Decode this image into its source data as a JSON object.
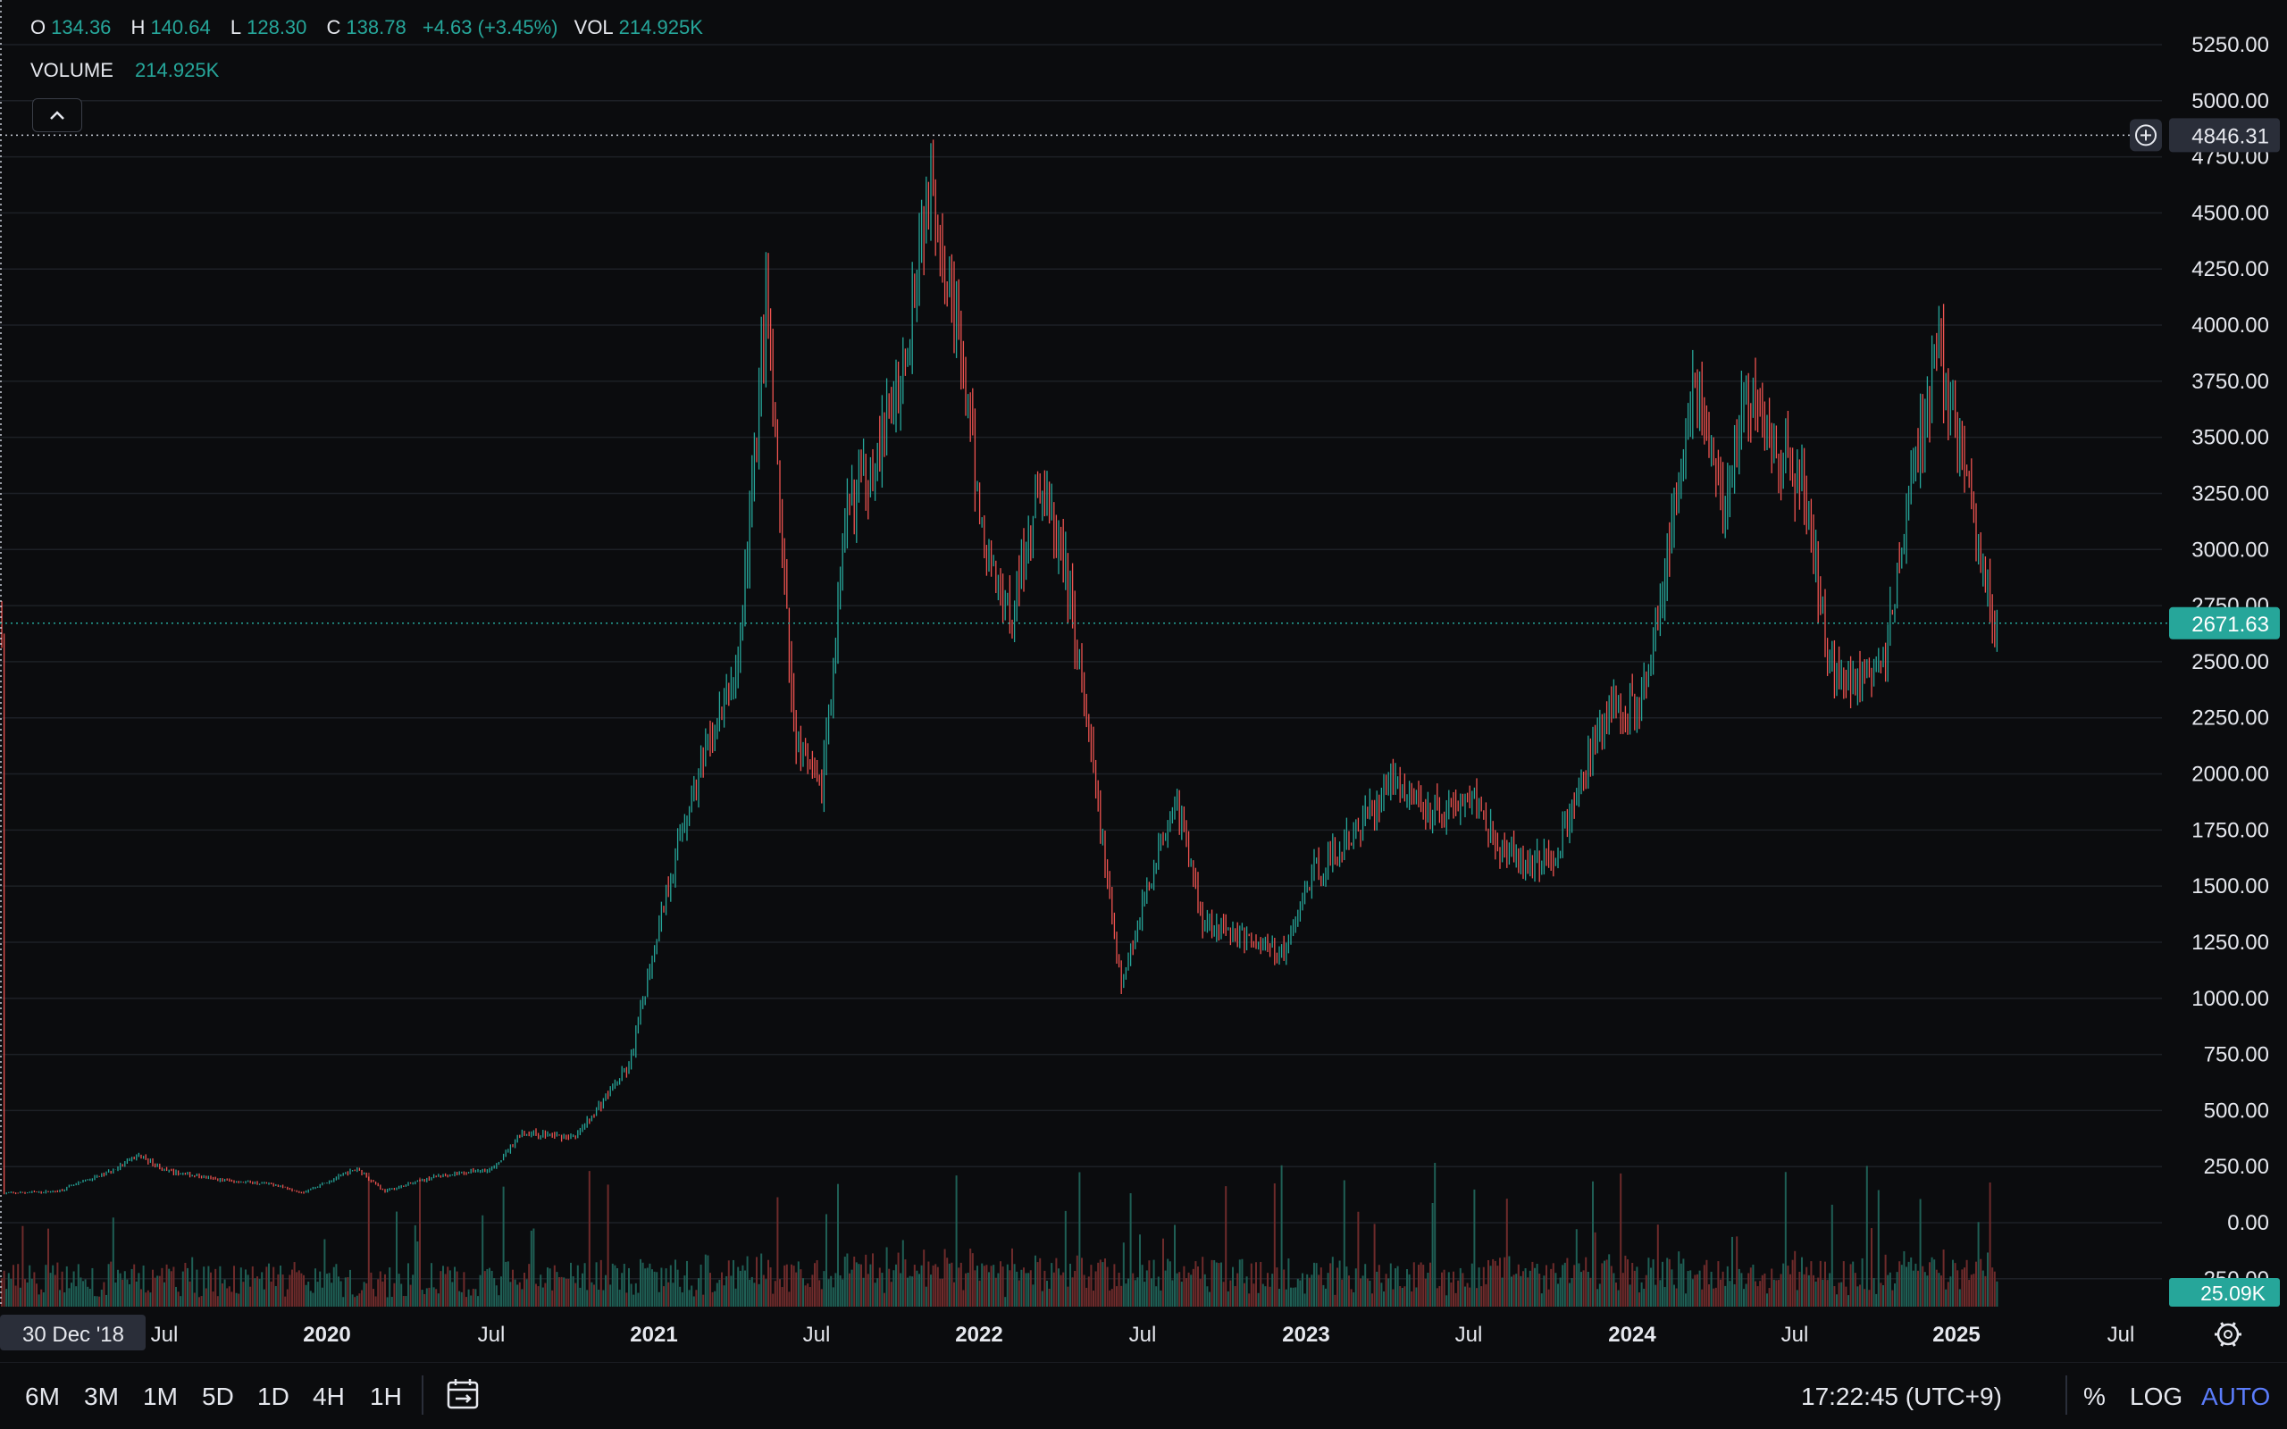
{
  "legend": {
    "open_label": "O",
    "open": "134.36",
    "high_label": "H",
    "high": "140.64",
    "low_label": "L",
    "low": "128.30",
    "close_label": "C",
    "close": "138.78",
    "change": "+4.63 (+3.45%)",
    "vol_label": "VOL",
    "vol": "214.925K",
    "volume_label": "VOLUME",
    "volume": "214.925K"
  },
  "price_axis": {
    "ticks": [
      "5250.00",
      "5000.00",
      "4750.00",
      "4500.00",
      "4250.00",
      "4000.00",
      "3750.00",
      "3500.00",
      "3250.00",
      "3000.00",
      "2750.00",
      "2500.00",
      "2250.00",
      "2000.00",
      "1750.00",
      "1500.00",
      "1250.00",
      "1000.00",
      "750.00",
      "500.00",
      "250.00",
      "0.00",
      "-250.00"
    ],
    "crosshair_price": "4846.31",
    "last_price": "2671.63",
    "volume_badge": "25.09K"
  },
  "time_axis": {
    "crosshair_date": "30 Dec '18",
    "labels": [
      {
        "text": "Jul",
        "bold": false
      },
      {
        "text": "2020",
        "bold": true
      },
      {
        "text": "Jul",
        "bold": false
      },
      {
        "text": "2021",
        "bold": true
      },
      {
        "text": "Jul",
        "bold": false
      },
      {
        "text": "2022",
        "bold": true
      },
      {
        "text": "Jul",
        "bold": false
      },
      {
        "text": "2023",
        "bold": true
      },
      {
        "text": "Jul",
        "bold": false
      },
      {
        "text": "2024",
        "bold": true
      },
      {
        "text": "Jul",
        "bold": false
      },
      {
        "text": "2025",
        "bold": true
      },
      {
        "text": "Jul",
        "bold": false
      }
    ]
  },
  "toolbar": {
    "timeframes": [
      "6M",
      "3M",
      "1M",
      "5D",
      "1D",
      "4H",
      "1H"
    ],
    "clock": "17:22:45 (UTC+9)",
    "percent": "%",
    "log": "LOG",
    "auto": "AUTO"
  },
  "colors": {
    "up": "#26a69a",
    "down": "#ef5350",
    "up_dim": "#1f5f55",
    "down_dim": "#6e2b2b",
    "grid": "#1d2026",
    "last_price_bg": "#26a69a",
    "crosshair_bg": "#2a2e39"
  },
  "chart_data": {
    "type": "candlestick",
    "x_range": [
      "2018-12-30",
      "2025-07"
    ],
    "ylim": [
      -250,
      5250
    ],
    "series": [
      {
        "name": "",
        "points": [
          [
            "2019-01",
            130
          ],
          [
            "2019-03",
            140
          ],
          [
            "2019-05",
            230
          ],
          [
            "2019-06",
            300
          ],
          [
            "2019-07",
            230
          ],
          [
            "2019-09",
            190
          ],
          [
            "2019-11",
            170
          ],
          [
            "2019-12",
            135
          ],
          [
            "2020-02",
            240
          ],
          [
            "2020-03",
            140
          ],
          [
            "2020-05",
            210
          ],
          [
            "2020-07",
            240
          ],
          [
            "2020-08",
            400
          ],
          [
            "2020-10",
            380
          ],
          [
            "2020-12",
            700
          ],
          [
            "2021-01",
            1300
          ],
          [
            "2021-02",
            1800
          ],
          [
            "2021-04",
            2500
          ],
          [
            "2021-05",
            4100
          ],
          [
            "2021-06",
            2200
          ],
          [
            "2021-07",
            1900
          ],
          [
            "2021-08",
            3200
          ],
          [
            "2021-09",
            3400
          ],
          [
            "2021-10",
            3800
          ],
          [
            "2021-11",
            4700
          ],
          [
            "2021-12",
            4000
          ],
          [
            "2022-01",
            3000
          ],
          [
            "2022-02",
            2700
          ],
          [
            "2022-03",
            3300
          ],
          [
            "2022-04",
            2900
          ],
          [
            "2022-05",
            2000
          ],
          [
            "2022-06",
            1050
          ],
          [
            "2022-07",
            1500
          ],
          [
            "2022-08",
            1900
          ],
          [
            "2022-09",
            1350
          ],
          [
            "2022-10",
            1300
          ],
          [
            "2022-11",
            1250
          ],
          [
            "2022-12",
            1200
          ],
          [
            "2023-01",
            1550
          ],
          [
            "2023-02",
            1650
          ],
          [
            "2023-03",
            1800
          ],
          [
            "2023-04",
            2000
          ],
          [
            "2023-05",
            1850
          ],
          [
            "2023-06",
            1850
          ],
          [
            "2023-07",
            1900
          ],
          [
            "2023-08",
            1650
          ],
          [
            "2023-09",
            1600
          ],
          [
            "2023-10",
            1650
          ],
          [
            "2023-11",
            2000
          ],
          [
            "2023-12",
            2300
          ],
          [
            "2024-01",
            2300
          ],
          [
            "2024-02",
            2900
          ],
          [
            "2024-03",
            3800
          ],
          [
            "2024-04",
            3200
          ],
          [
            "2024-05",
            3700
          ],
          [
            "2024-06",
            3450
          ],
          [
            "2024-07",
            3300
          ],
          [
            "2024-08",
            2500
          ],
          [
            "2024-09",
            2400
          ],
          [
            "2024-10",
            2500
          ],
          [
            "2024-11",
            3300
          ],
          [
            "2024-12",
            3900
          ],
          [
            "2025-01",
            3300
          ],
          [
            "2025-02",
            2671.63
          ]
        ]
      }
    ]
  }
}
